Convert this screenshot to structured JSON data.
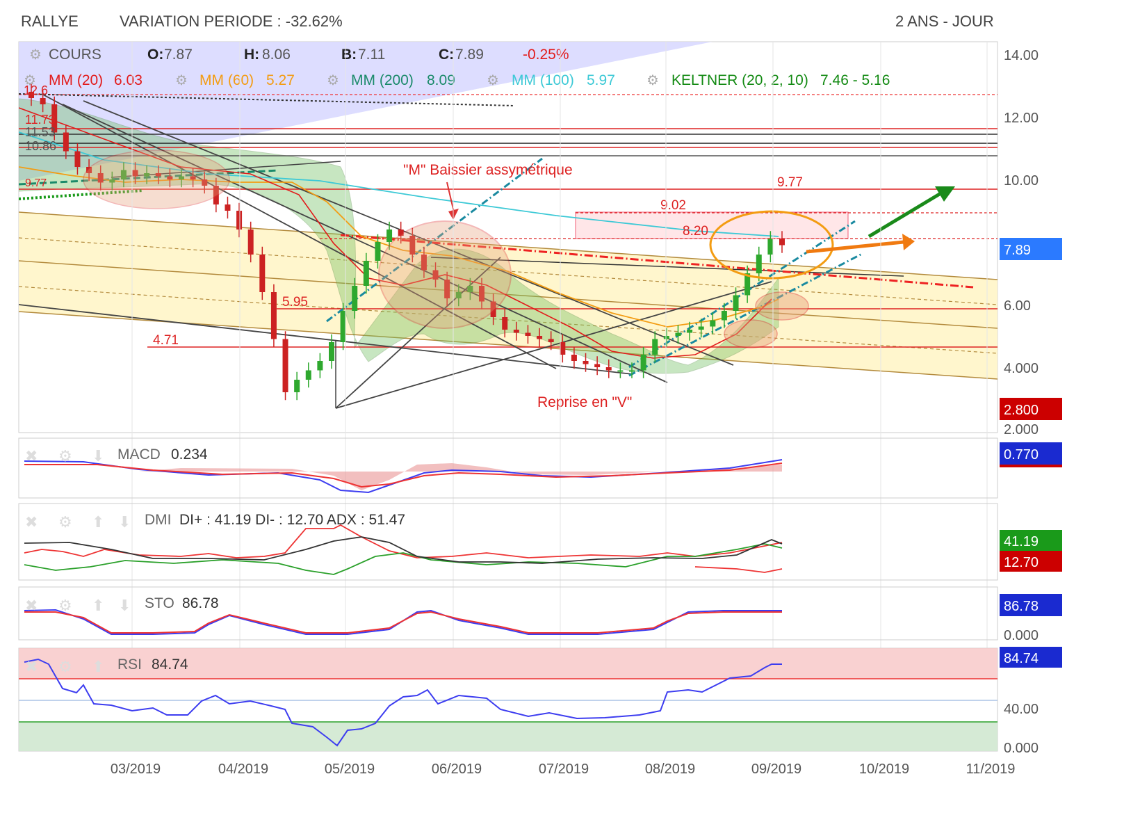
{
  "header": {
    "symbol": "RALLYE",
    "variation": "VARIATION PERIODE : -32.62%",
    "period": "2 ANS - JOUR"
  },
  "price_panel": {
    "cours_label": "COURS",
    "o_label": "O:",
    "o_value": "7.87",
    "h_label": "H:",
    "h_value": "8.06",
    "b_label": "B:",
    "b_value": "7.11",
    "c_label": "C:",
    "c_value": "7.89",
    "change": "-0.25%",
    "mm20": "MM (20)",
    "mm20_value": "6.03",
    "mm60": "MM (60)",
    "mm60_value": "5.27",
    "mm200": "MM (200)",
    "mm200_value": "8.09",
    "mm100": "MM (100)",
    "mm100_value": "5.97",
    "keltner": "KELTNER (20, 2, 10)",
    "keltner_value": "7.46 - 5.16",
    "last_badge": "7.89",
    "low_badge": "2.800",
    "annotation_m": "\"M\" Baissier assymétrique",
    "annotation_v": "Reprise en \"V\"",
    "levels": [
      "9.77",
      "9.02",
      "8.20",
      "5.95",
      "4.71"
    ]
  },
  "macd_panel": {
    "label": "MACD",
    "value": "0.234",
    "badge": "0.770"
  },
  "dmi_panel": {
    "label": "DMI",
    "values": "DI+ : 41.19 DI- : 12.70 ADX : 51.47",
    "badge_plus": "41.19",
    "badge_minus": "12.70"
  },
  "sto_panel": {
    "label": "STO",
    "value": "86.78",
    "badge": "86.78",
    "axis": "0.000"
  },
  "rsi_panel": {
    "label": "RSI",
    "value": "84.74",
    "badge": "84.74",
    "axis_40": "40.00",
    "axis_0": "0.000"
  },
  "colors": {
    "up": "#2ea82e",
    "down": "#cc2222",
    "mm20": "#e21b1b",
    "mm60": "#f39c12",
    "mm200": "#1a8a6a",
    "mm100": "#3cc9d6",
    "keltner": "#138a13",
    "badge_blue": "#2b5cff",
    "badge_red": "#cc0000",
    "badge_green": "#1a9a1a"
  },
  "chart_data": {
    "type": "candlestick",
    "x_ticks": [
      "03/2019",
      "04/2019",
      "05/2019",
      "06/2019",
      "07/2019",
      "08/2019",
      "09/2019",
      "10/2019",
      "11/2019"
    ],
    "y_ticks": [
      "14.00",
      "12.00",
      "10.00",
      "6.00",
      "4.000",
      "2.000"
    ],
    "ylim": [
      2.0,
      14.0
    ],
    "closes": [
      12.6,
      12.4,
      11.5,
      10.9,
      10.4,
      10.2,
      9.9,
      10.0,
      10.3,
      10.1,
      10.2,
      10.1,
      10.0,
      10.1,
      10.0,
      9.8,
      9.2,
      9.0,
      8.4,
      7.6,
      6.4,
      4.9,
      3.2,
      3.6,
      3.9,
      4.2,
      4.8,
      5.8,
      6.6,
      7.4,
      8.0,
      8.4,
      8.2,
      7.6,
      7.1,
      6.8,
      6.2,
      6.4,
      6.6,
      6.1,
      5.6,
      5.2,
      5.1,
      5.0,
      4.9,
      4.8,
      4.4,
      4.2,
      4.1,
      4.0,
      3.9,
      3.9,
      3.9,
      4.4,
      4.9,
      5.0,
      5.1,
      5.2,
      5.3,
      5.5,
      5.8,
      6.3,
      7.0,
      7.6,
      8.1,
      7.9
    ],
    "macd": {
      "labels": [
        "MACD"
      ],
      "last": 0.234
    },
    "dmi": {
      "di_plus": 41.19,
      "di_minus": 12.7,
      "adx": 51.47
    },
    "sto": 86.78,
    "rsi": 84.74
  }
}
